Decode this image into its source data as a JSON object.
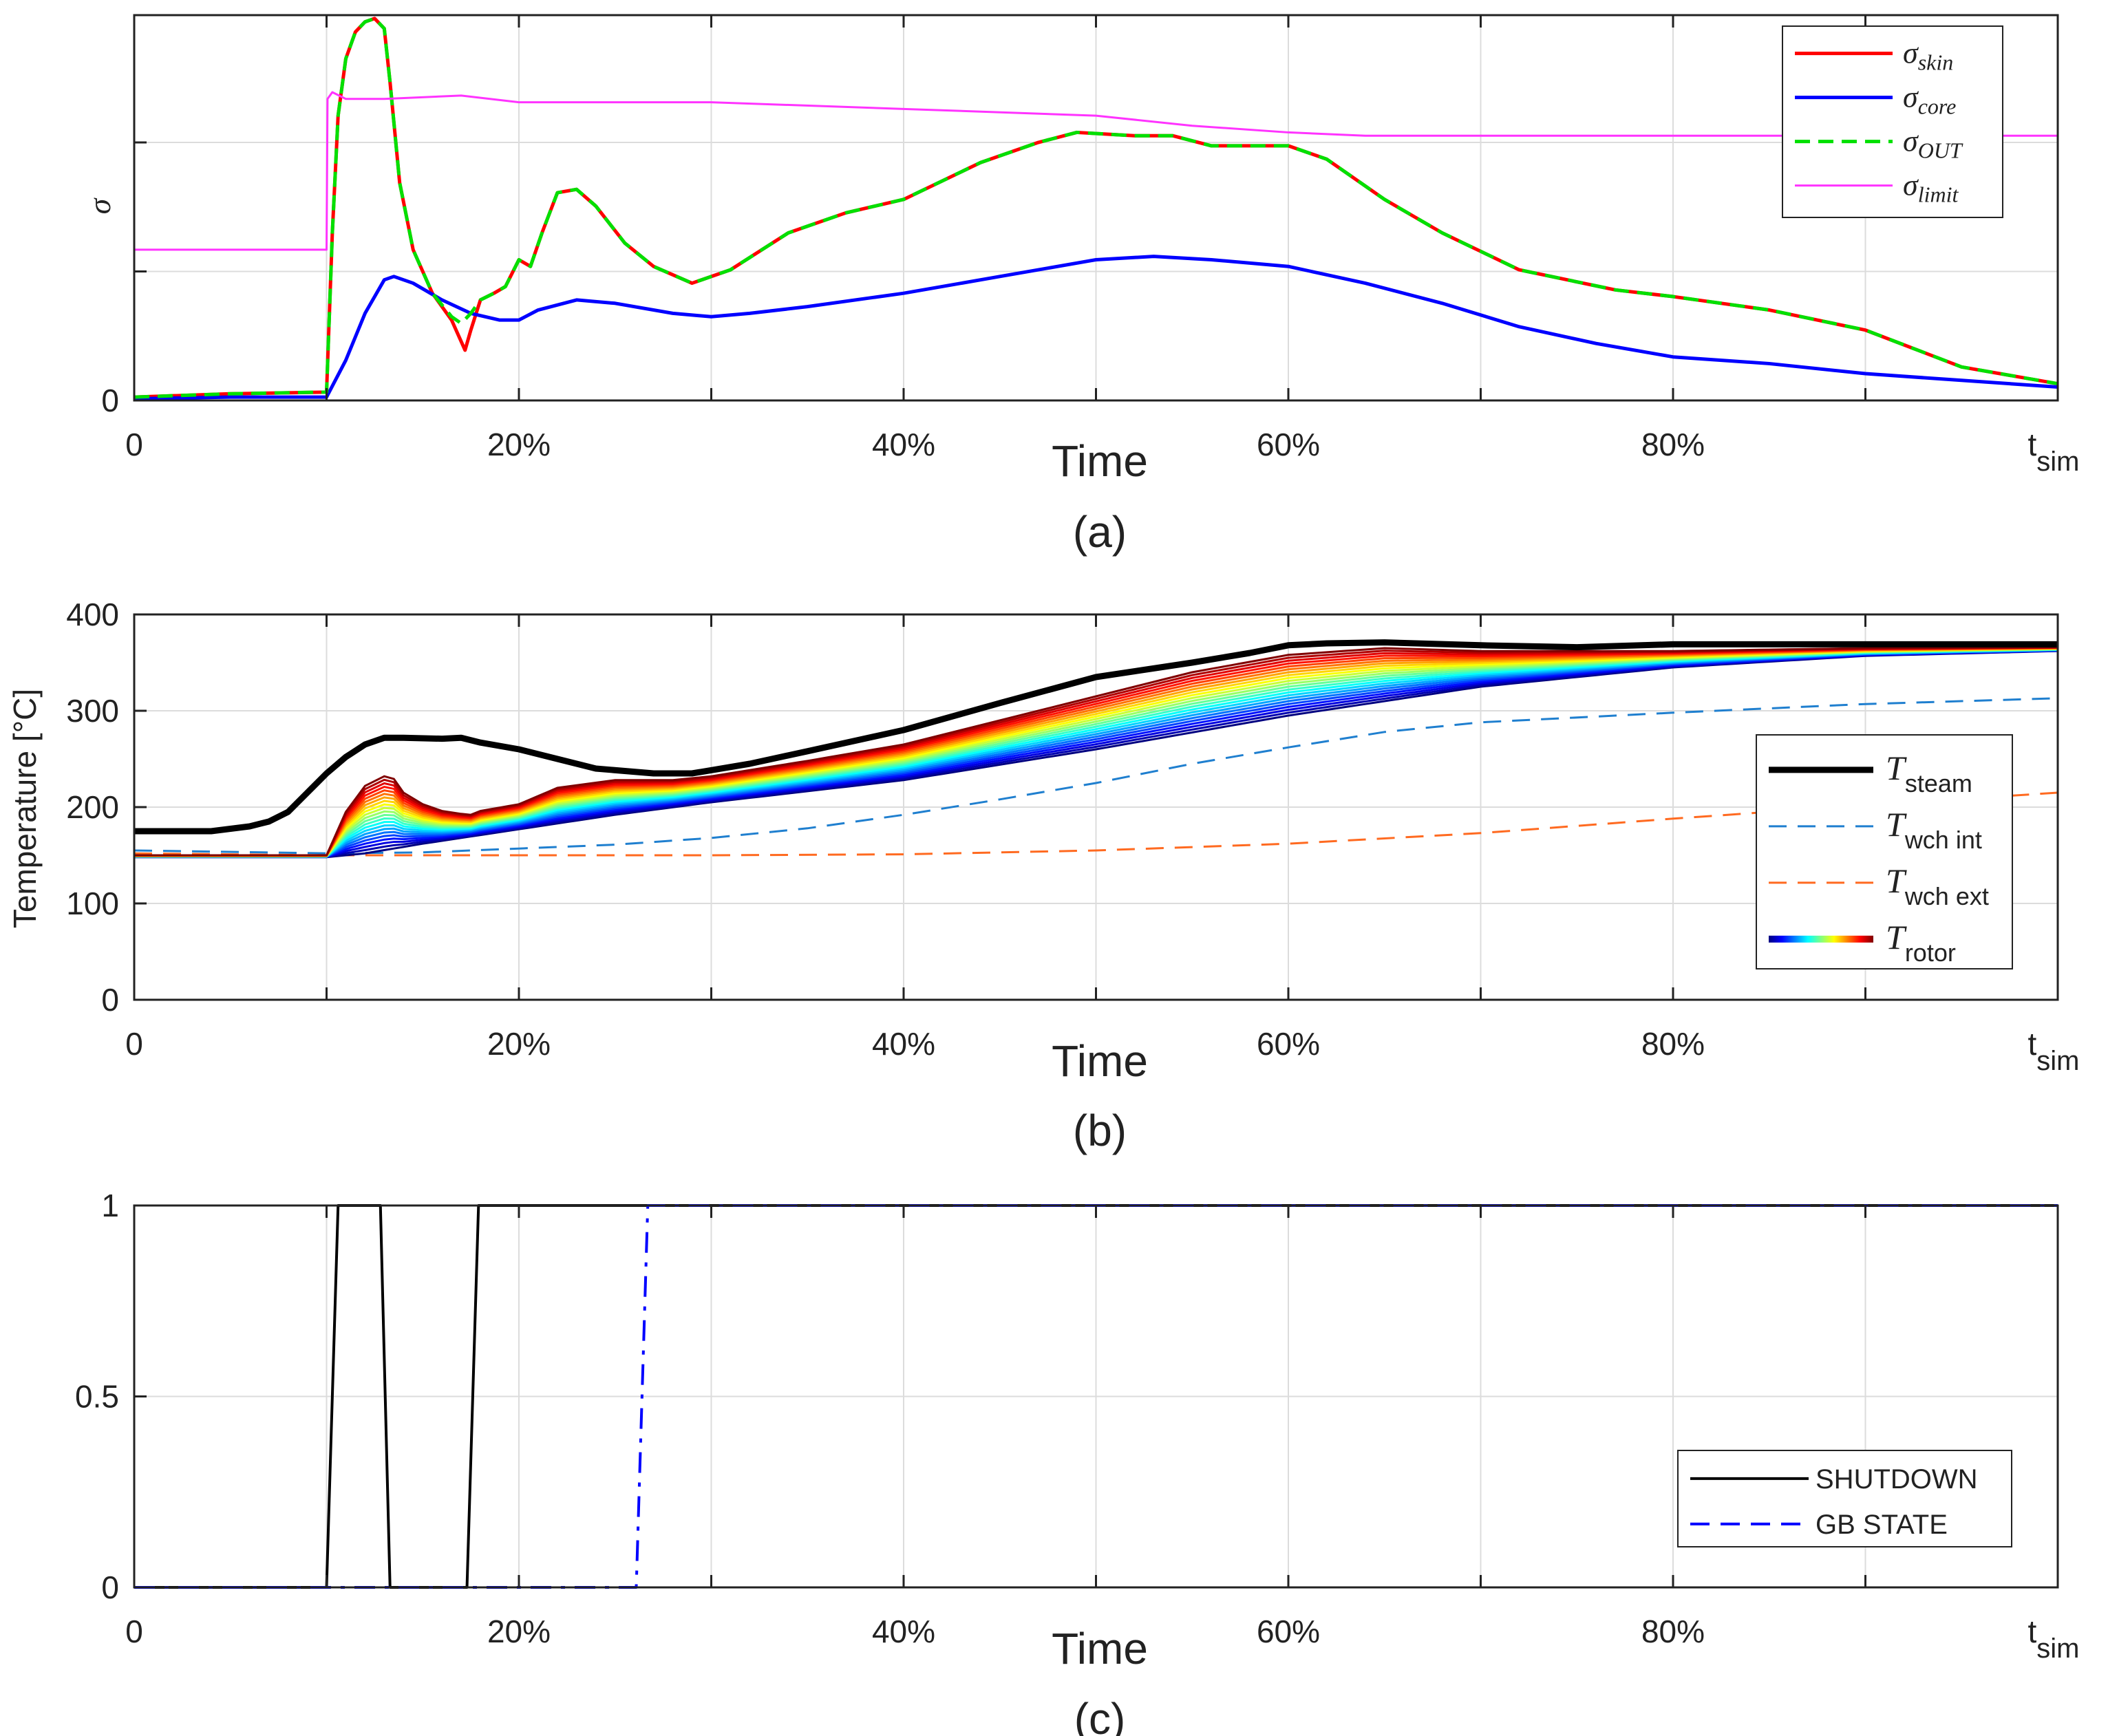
{
  "chart_data": [
    {
      "type": "line",
      "caption": "(a)",
      "xlabel": "Time",
      "ylabel": "σ",
      "xlim": [
        0,
        100
      ],
      "ylim": [
        0,
        1.15
      ],
      "x_ticks": [
        {
          "value": 0,
          "label": "0"
        },
        {
          "value": 20,
          "label": "20%"
        },
        {
          "value": 40,
          "label": "40%"
        },
        {
          "value": 60,
          "label": "60%"
        },
        {
          "value": 80,
          "label": "80%"
        },
        {
          "value": 100,
          "label": "t",
          "sub": "sim"
        }
      ],
      "y_ticks": [
        {
          "value": 0,
          "label": "0"
        }
      ],
      "grid": true,
      "legend_position": "top-right",
      "series": [
        {
          "name": "σ",
          "sub": "skin",
          "color": "#ff0000",
          "dash": "",
          "width": 5,
          "x": [
            0,
            5,
            10,
            10.3,
            10.6,
            11,
            11.5,
            12,
            12.5,
            13,
            13.3,
            13.8,
            14.5,
            15.5,
            16.5,
            17.2,
            17.5,
            18,
            18.7,
            19.3,
            20,
            20.6,
            21.2,
            22,
            23,
            24,
            25.5,
            27,
            29,
            31,
            34,
            37,
            40,
            44,
            47,
            49,
            52,
            54,
            56,
            60,
            62,
            65,
            68,
            72,
            77,
            80,
            85,
            90,
            95,
            100
          ],
          "y": [
            0.01,
            0.02,
            0.025,
            0.5,
            0.85,
            1.02,
            1.1,
            1.13,
            1.14,
            1.11,
            0.95,
            0.65,
            0.45,
            0.32,
            0.24,
            0.15,
            0.21,
            0.3,
            0.32,
            0.34,
            0.42,
            0.4,
            0.5,
            0.62,
            0.63,
            0.58,
            0.47,
            0.4,
            0.35,
            0.39,
            0.5,
            0.56,
            0.6,
            0.71,
            0.77,
            0.8,
            0.79,
            0.79,
            0.76,
            0.76,
            0.72,
            0.6,
            0.5,
            0.39,
            0.33,
            0.31,
            0.27,
            0.21,
            0.1,
            0.05
          ]
        },
        {
          "name": "σ",
          "sub": "core",
          "color": "#0000ff",
          "dash": "",
          "width": 5,
          "x": [
            0,
            5,
            10,
            11,
            12,
            13,
            13.5,
            14.5,
            16,
            17.5,
            19,
            20,
            21,
            23,
            25,
            28,
            30,
            32,
            35,
            40,
            45,
            50,
            53,
            56,
            60,
            64,
            68,
            72,
            76,
            80,
            85,
            90,
            95,
            100
          ],
          "y": [
            0.005,
            0.01,
            0.01,
            0.12,
            0.26,
            0.36,
            0.37,
            0.35,
            0.3,
            0.26,
            0.24,
            0.24,
            0.27,
            0.3,
            0.29,
            0.26,
            0.25,
            0.26,
            0.28,
            0.32,
            0.37,
            0.42,
            0.43,
            0.42,
            0.4,
            0.35,
            0.29,
            0.22,
            0.17,
            0.13,
            0.11,
            0.08,
            0.06,
            0.04
          ]
        },
        {
          "name": "σ",
          "sub": "OUT",
          "color": "#00e000",
          "dash": "22,12",
          "width": 5,
          "x": [
            0,
            5,
            10,
            10.3,
            10.6,
            11,
            11.5,
            12,
            12.5,
            13,
            13.3,
            13.8,
            14.5,
            15.5,
            16.5,
            17,
            17.5,
            18,
            18.7,
            19.3,
            20,
            20.6,
            21.2,
            22,
            23,
            24,
            25.5,
            27,
            29,
            31,
            34,
            37,
            40,
            44,
            47,
            49,
            52,
            54,
            56,
            60,
            62,
            65,
            68,
            72,
            77,
            80,
            85,
            90,
            95,
            100
          ],
          "y": [
            0.01,
            0.02,
            0.025,
            0.5,
            0.85,
            1.02,
            1.1,
            1.13,
            1.14,
            1.11,
            0.95,
            0.65,
            0.45,
            0.32,
            0.25,
            0.23,
            0.26,
            0.3,
            0.32,
            0.34,
            0.42,
            0.4,
            0.5,
            0.62,
            0.63,
            0.58,
            0.47,
            0.4,
            0.35,
            0.39,
            0.5,
            0.56,
            0.6,
            0.71,
            0.77,
            0.8,
            0.79,
            0.79,
            0.76,
            0.76,
            0.72,
            0.6,
            0.5,
            0.39,
            0.33,
            0.31,
            0.27,
            0.21,
            0.1,
            0.05
          ]
        },
        {
          "name": "σ",
          "sub": "limit",
          "color": "#ff33ff",
          "dash": "",
          "width": 3,
          "x": [
            0,
            10,
            10.05,
            10.3,
            11,
            13,
            17,
            20,
            22,
            30,
            40,
            50,
            55,
            60,
            64,
            70,
            80,
            90,
            100
          ],
          "y": [
            0.45,
            0.45,
            0.9,
            0.92,
            0.9,
            0.9,
            0.91,
            0.89,
            0.89,
            0.89,
            0.87,
            0.85,
            0.82,
            0.8,
            0.79,
            0.79,
            0.79,
            0.79,
            0.79
          ]
        }
      ]
    },
    {
      "type": "line",
      "caption": "(b)",
      "xlabel": "Time",
      "ylabel": "Temperature [°C]",
      "xlim": [
        0,
        100
      ],
      "ylim": [
        0,
        400
      ],
      "x_ticks": [
        {
          "value": 0,
          "label": "0"
        },
        {
          "value": 20,
          "label": "20%"
        },
        {
          "value": 40,
          "label": "40%"
        },
        {
          "value": 60,
          "label": "60%"
        },
        {
          "value": 80,
          "label": "80%"
        },
        {
          "value": 100,
          "label": "t",
          "sub": "sim"
        }
      ],
      "y_ticks": [
        {
          "value": 0,
          "label": "0"
        },
        {
          "value": 100,
          "label": "100"
        },
        {
          "value": 200,
          "label": "200"
        },
        {
          "value": 300,
          "label": "300"
        },
        {
          "value": 400,
          "label": "400"
        }
      ],
      "grid": true,
      "legend_position": "middle-right",
      "series": [
        {
          "name": "T",
          "sub": "steam",
          "color": "#000000",
          "dash": "",
          "width": 9,
          "x": [
            0,
            4,
            6,
            7,
            8,
            9,
            10,
            11,
            12,
            13,
            14,
            16,
            17,
            18,
            20,
            22,
            24,
            27,
            29,
            32,
            35,
            40,
            45,
            50,
            55,
            58,
            60,
            62,
            65,
            70,
            75,
            80,
            90,
            100
          ],
          "y": [
            175,
            175,
            180,
            185,
            195,
            215,
            235,
            252,
            265,
            272,
            272,
            271,
            272,
            267,
            260,
            250,
            240,
            235,
            235,
            245,
            258,
            280,
            308,
            335,
            350,
            360,
            368,
            370,
            371,
            368,
            366,
            369,
            369,
            369
          ]
        },
        {
          "name": "T",
          "sub": "wch int",
          "color": "#1f7fcf",
          "dash": "26,16",
          "width": 3,
          "x": [
            0,
            10,
            15,
            20,
            25,
            30,
            35,
            40,
            45,
            50,
            55,
            60,
            65,
            70,
            80,
            90,
            100
          ],
          "y": [
            155,
            152,
            153,
            157,
            161,
            168,
            178,
            192,
            208,
            225,
            245,
            262,
            278,
            288,
            298,
            307,
            313
          ]
        },
        {
          "name": "T",
          "sub": "wch ext",
          "color": "#ff6a20",
          "dash": "26,16",
          "width": 3,
          "x": [
            0,
            10,
            20,
            30,
            40,
            50,
            60,
            70,
            80,
            90,
            100
          ],
          "y": [
            152,
            150,
            150,
            150,
            151,
            155,
            162,
            173,
            188,
            202,
            215
          ]
        },
        {
          "name": "T",
          "sub": "rotor",
          "colormap": "jet",
          "count": 22,
          "width": 3,
          "x_outer": [
            0,
            10,
            11,
            12,
            13.3,
            14,
            15,
            16,
            17,
            17.5,
            18,
            20,
            22,
            25,
            28,
            30,
            35,
            40,
            45,
            50,
            55,
            60,
            65,
            70,
            80,
            90,
            100
          ],
          "y_outer": [
            150,
            150,
            195,
            222,
            235,
            215,
            203,
            196,
            193,
            192,
            196,
            203,
            220,
            228,
            228,
            232,
            248,
            265,
            290,
            315,
            340,
            358,
            365,
            362,
            362,
            365,
            366
          ],
          "x_inner": [
            0,
            10,
            12,
            15,
            20,
            25,
            30,
            40,
            50,
            60,
            70,
            80,
            90,
            100
          ],
          "y_inner": [
            148,
            148,
            152,
            162,
            177,
            192,
            205,
            228,
            260,
            295,
            325,
            345,
            357,
            362
          ]
        }
      ]
    },
    {
      "type": "line",
      "caption": "(c)",
      "xlabel": "Time",
      "ylabel": "",
      "xlim": [
        0,
        100
      ],
      "ylim": [
        0,
        1
      ],
      "x_ticks": [
        {
          "value": 0,
          "label": "0"
        },
        {
          "value": 20,
          "label": "20%"
        },
        {
          "value": 40,
          "label": "40%"
        },
        {
          "value": 60,
          "label": "60%"
        },
        {
          "value": 80,
          "label": "80%"
        },
        {
          "value": 100,
          "label": "t",
          "sub": "sim"
        }
      ],
      "y_ticks": [
        {
          "value": 0,
          "label": "0"
        },
        {
          "value": 0.5,
          "label": "0.5"
        },
        {
          "value": 1,
          "label": "1"
        }
      ],
      "grid": true,
      "legend_position": "bottom-right",
      "series": [
        {
          "name": "SHUTDOWN",
          "color": "#000000",
          "dash": "",
          "width": 4,
          "x": [
            0,
            10,
            10.6,
            12.8,
            13.3,
            17.3,
            17.9,
            100
          ],
          "y": [
            0,
            0,
            1,
            1,
            0,
            0,
            1,
            1
          ]
        },
        {
          "name": "GB STATE",
          "color": "#0000ff",
          "dash": "30,14,6,14",
          "legend_dash": "28,16",
          "width": 4,
          "x": [
            0,
            26.1,
            26.7,
            100
          ],
          "y": [
            0,
            0,
            1,
            1
          ]
        }
      ]
    }
  ]
}
